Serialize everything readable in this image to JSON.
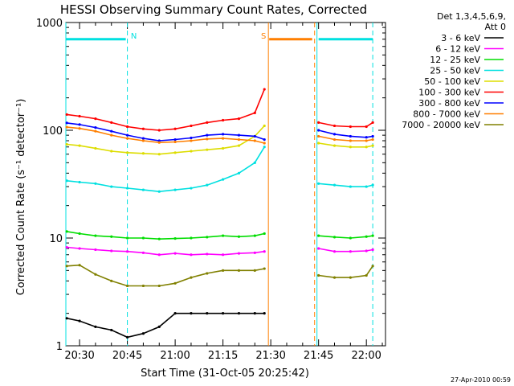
{
  "chart_data": {
    "type": "line",
    "title": "HESSI Observing Summary Count Rates, Corrected",
    "xlabel": "Start Time (31-Oct-05 20:25:42)",
    "ylabel": "Corrected Count Rate (s⁻¹ detector⁻¹)",
    "yscale": "log",
    "ylim": [
      1,
      1000
    ],
    "xlim": [
      "20:25:42",
      "22:06:00"
    ],
    "x_ticks": [
      "20:30",
      "20:45",
      "21:00",
      "21:15",
      "21:30",
      "21:45",
      "22:00"
    ],
    "y_ticks": [
      "1",
      "10",
      "100",
      "1000"
    ],
    "legend_header": [
      "Det 1,3,4,5,6,9,",
      "Att 0"
    ],
    "legend_position": "right",
    "footer_date": "27-Apr-2010 00:59",
    "flags": [
      {
        "label": "N",
        "color": "#00e0e0",
        "start": "20:25:42",
        "end": "20:44:30"
      },
      {
        "label": "S",
        "color": "#ff7f00",
        "start": "21:29:30",
        "end": "21:43:00"
      },
      {
        "label": "",
        "color": "#00e0e0",
        "start": "21:45:00",
        "end": "22:02:00"
      }
    ],
    "vertical_markers": [
      {
        "time": "20:25:42",
        "color": "#00e0e0",
        "style": "solid"
      },
      {
        "time": "20:45:00",
        "color": "#00e0e0",
        "style": "dashed"
      },
      {
        "time": "21:29:15",
        "color": "#ff7f00",
        "style": "solid"
      },
      {
        "time": "21:43:45",
        "color": "#ff7f00",
        "style": "dashed"
      },
      {
        "time": "21:44:30",
        "color": "#00e0e0",
        "style": "solid"
      },
      {
        "time": "22:02:00",
        "color": "#00e0e0",
        "style": "dashed"
      }
    ],
    "x": [
      "20:26",
      "20:30",
      "20:35",
      "20:40",
      "20:45",
      "20:50",
      "20:55",
      "21:00",
      "21:05",
      "21:10",
      "21:15",
      "21:20",
      "21:25",
      "21:28",
      "21:29",
      "21:45",
      "21:50",
      "21:55",
      "22:00",
      "22:02"
    ],
    "series": [
      {
        "name": "3 - 6 keV",
        "color": "#000000",
        "values": [
          1.8,
          1.7,
          1.5,
          1.4,
          1.2,
          1.3,
          1.5,
          2.0,
          2.0,
          2.0,
          2.0,
          2.0,
          2.0,
          2.0,
          null,
          null,
          null,
          null,
          null,
          null
        ]
      },
      {
        "name": "6 - 12 keV",
        "color": "#ff00ff",
        "values": [
          8.2,
          8.0,
          7.8,
          7.6,
          7.5,
          7.3,
          7.0,
          7.2,
          7.0,
          7.1,
          7.0,
          7.2,
          7.3,
          7.5,
          null,
          8.0,
          7.5,
          7.5,
          7.6,
          7.8
        ]
      },
      {
        "name": "12 - 25 keV",
        "color": "#00dd00",
        "values": [
          11.5,
          11.0,
          10.5,
          10.3,
          10.0,
          10.0,
          9.8,
          9.9,
          10.0,
          10.2,
          10.5,
          10.3,
          10.5,
          11.0,
          null,
          10.5,
          10.2,
          10.0,
          10.3,
          10.5
        ]
      },
      {
        "name": "25 - 50 keV",
        "color": "#00e0e0",
        "values": [
          34,
          33,
          32,
          30,
          29,
          28,
          27,
          28,
          29,
          31,
          35,
          40,
          50,
          70,
          null,
          32,
          31,
          30,
          30,
          31
        ]
      },
      {
        "name": "50 - 100 keV",
        "color": "#dddd00",
        "values": [
          74,
          72,
          68,
          64,
          62,
          61,
          60,
          62,
          64,
          66,
          68,
          72,
          88,
          110,
          null,
          76,
          72,
          70,
          70,
          72
        ]
      },
      {
        "name": "100 - 300 keV",
        "color": "#ff0000",
        "values": [
          140,
          135,
          128,
          118,
          108,
          103,
          100,
          103,
          110,
          118,
          124,
          128,
          145,
          240,
          null,
          118,
          110,
          108,
          108,
          118
        ]
      },
      {
        "name": "300 - 800 keV",
        "color": "#0000ff",
        "values": [
          117,
          113,
          106,
          98,
          90,
          84,
          80,
          82,
          85,
          90,
          92,
          90,
          88,
          82,
          null,
          100,
          92,
          88,
          86,
          88
        ]
      },
      {
        "name": "800 - 7000 keV",
        "color": "#ff7f00",
        "values": [
          107,
          104,
          98,
          90,
          84,
          80,
          77,
          78,
          80,
          83,
          84,
          82,
          80,
          76,
          null,
          88,
          82,
          80,
          80,
          82
        ]
      },
      {
        "name": "7000 - 20000 keV",
        "color": "#808000",
        "values": [
          5.5,
          5.6,
          4.6,
          4.0,
          3.6,
          3.6,
          3.6,
          3.8,
          4.3,
          4.7,
          5.0,
          5.0,
          5.0,
          5.2,
          null,
          4.5,
          4.3,
          4.3,
          4.5,
          5.5
        ]
      }
    ]
  }
}
